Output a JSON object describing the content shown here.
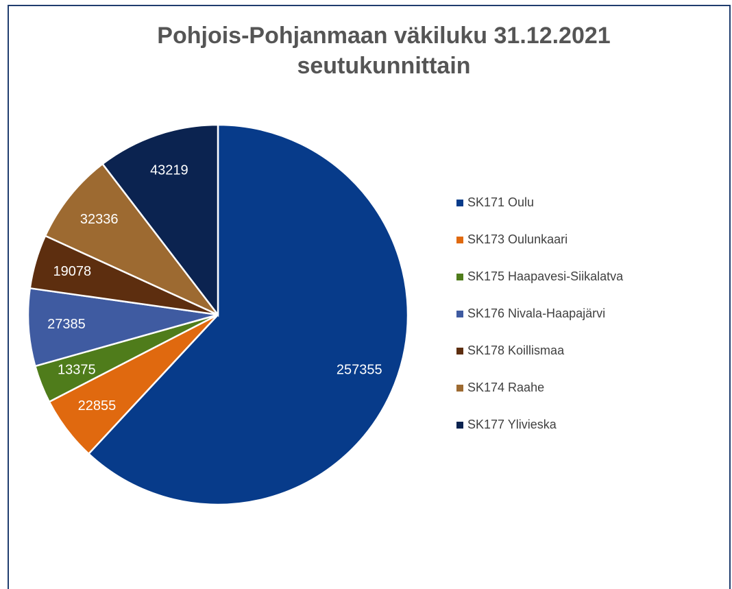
{
  "chart_data": {
    "type": "pie",
    "title": "Pohjois-Pohjanmaan väkiluku 31.12.2021 seutukunnittain",
    "categories": [
      "SK171 Oulu",
      "SK173 Oulunkaari",
      "SK175 Haapavesi-Siikalatva",
      "SK176 Nivala-Haapajärvi",
      "SK178 Koillismaa",
      "SK174 Raahe",
      "SK177 Ylivieska"
    ],
    "values": [
      257355,
      22855,
      13375,
      27385,
      19078,
      32336,
      43219
    ],
    "colors": [
      "#073b8a",
      "#e0690f",
      "#4f7c1b",
      "#3f5ba1",
      "#5d2e0f",
      "#9d6a31",
      "#0b2350"
    ],
    "legend": "right"
  }
}
